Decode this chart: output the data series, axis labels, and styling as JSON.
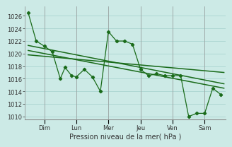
{
  "title": "",
  "xlabel": "Pression niveau de la mer( hPa )",
  "bg_color": "#cceae6",
  "grid_color": "#aad4d0",
  "line_color": "#1a6b1a",
  "spine_color": "#888888",
  "ylim": [
    1009.5,
    1027.5
  ],
  "xlim": [
    -0.2,
    12.3
  ],
  "day_labels": [
    "Dim",
    "Lun",
    "Mer",
    "Jeu",
    "Ven",
    "Sam"
  ],
  "day_positions": [
    1.0,
    3.0,
    5.0,
    7.0,
    9.0,
    11.0
  ],
  "series1_x": [
    0,
    0.5,
    1.0,
    1.5,
    2.0,
    2.3,
    2.7,
    3.0,
    3.5,
    4.0,
    4.5,
    5.0,
    5.5,
    6.0,
    6.5,
    7.0,
    7.5,
    8.0,
    8.5,
    9.0,
    9.5,
    10.0,
    10.5,
    11.0,
    11.5,
    12.0
  ],
  "series1_y": [
    1026.5,
    1022.0,
    1021.2,
    1020.3,
    1016.0,
    1017.8,
    1016.5,
    1016.3,
    1017.5,
    1016.3,
    1014.0,
    1023.5,
    1022.0,
    1022.0,
    1021.5,
    1017.5,
    1016.5,
    1016.8,
    1016.5,
    1016.5,
    1016.5,
    1010.0,
    1010.5,
    1010.5,
    1014.5,
    1013.5
  ],
  "trend1_x": [
    0,
    12.2
  ],
  "trend1_y": [
    1021.3,
    1015.2
  ],
  "trend2_x": [
    0,
    12.2
  ],
  "trend2_y": [
    1020.5,
    1014.5
  ],
  "trend3_x": [
    0,
    12.2
  ],
  "trend3_y": [
    1019.8,
    1017.0
  ],
  "yticks": [
    1010,
    1012,
    1014,
    1016,
    1018,
    1020,
    1022,
    1024,
    1026
  ],
  "tick_fontsize": 6.0,
  "xlabel_fontsize": 7.0
}
